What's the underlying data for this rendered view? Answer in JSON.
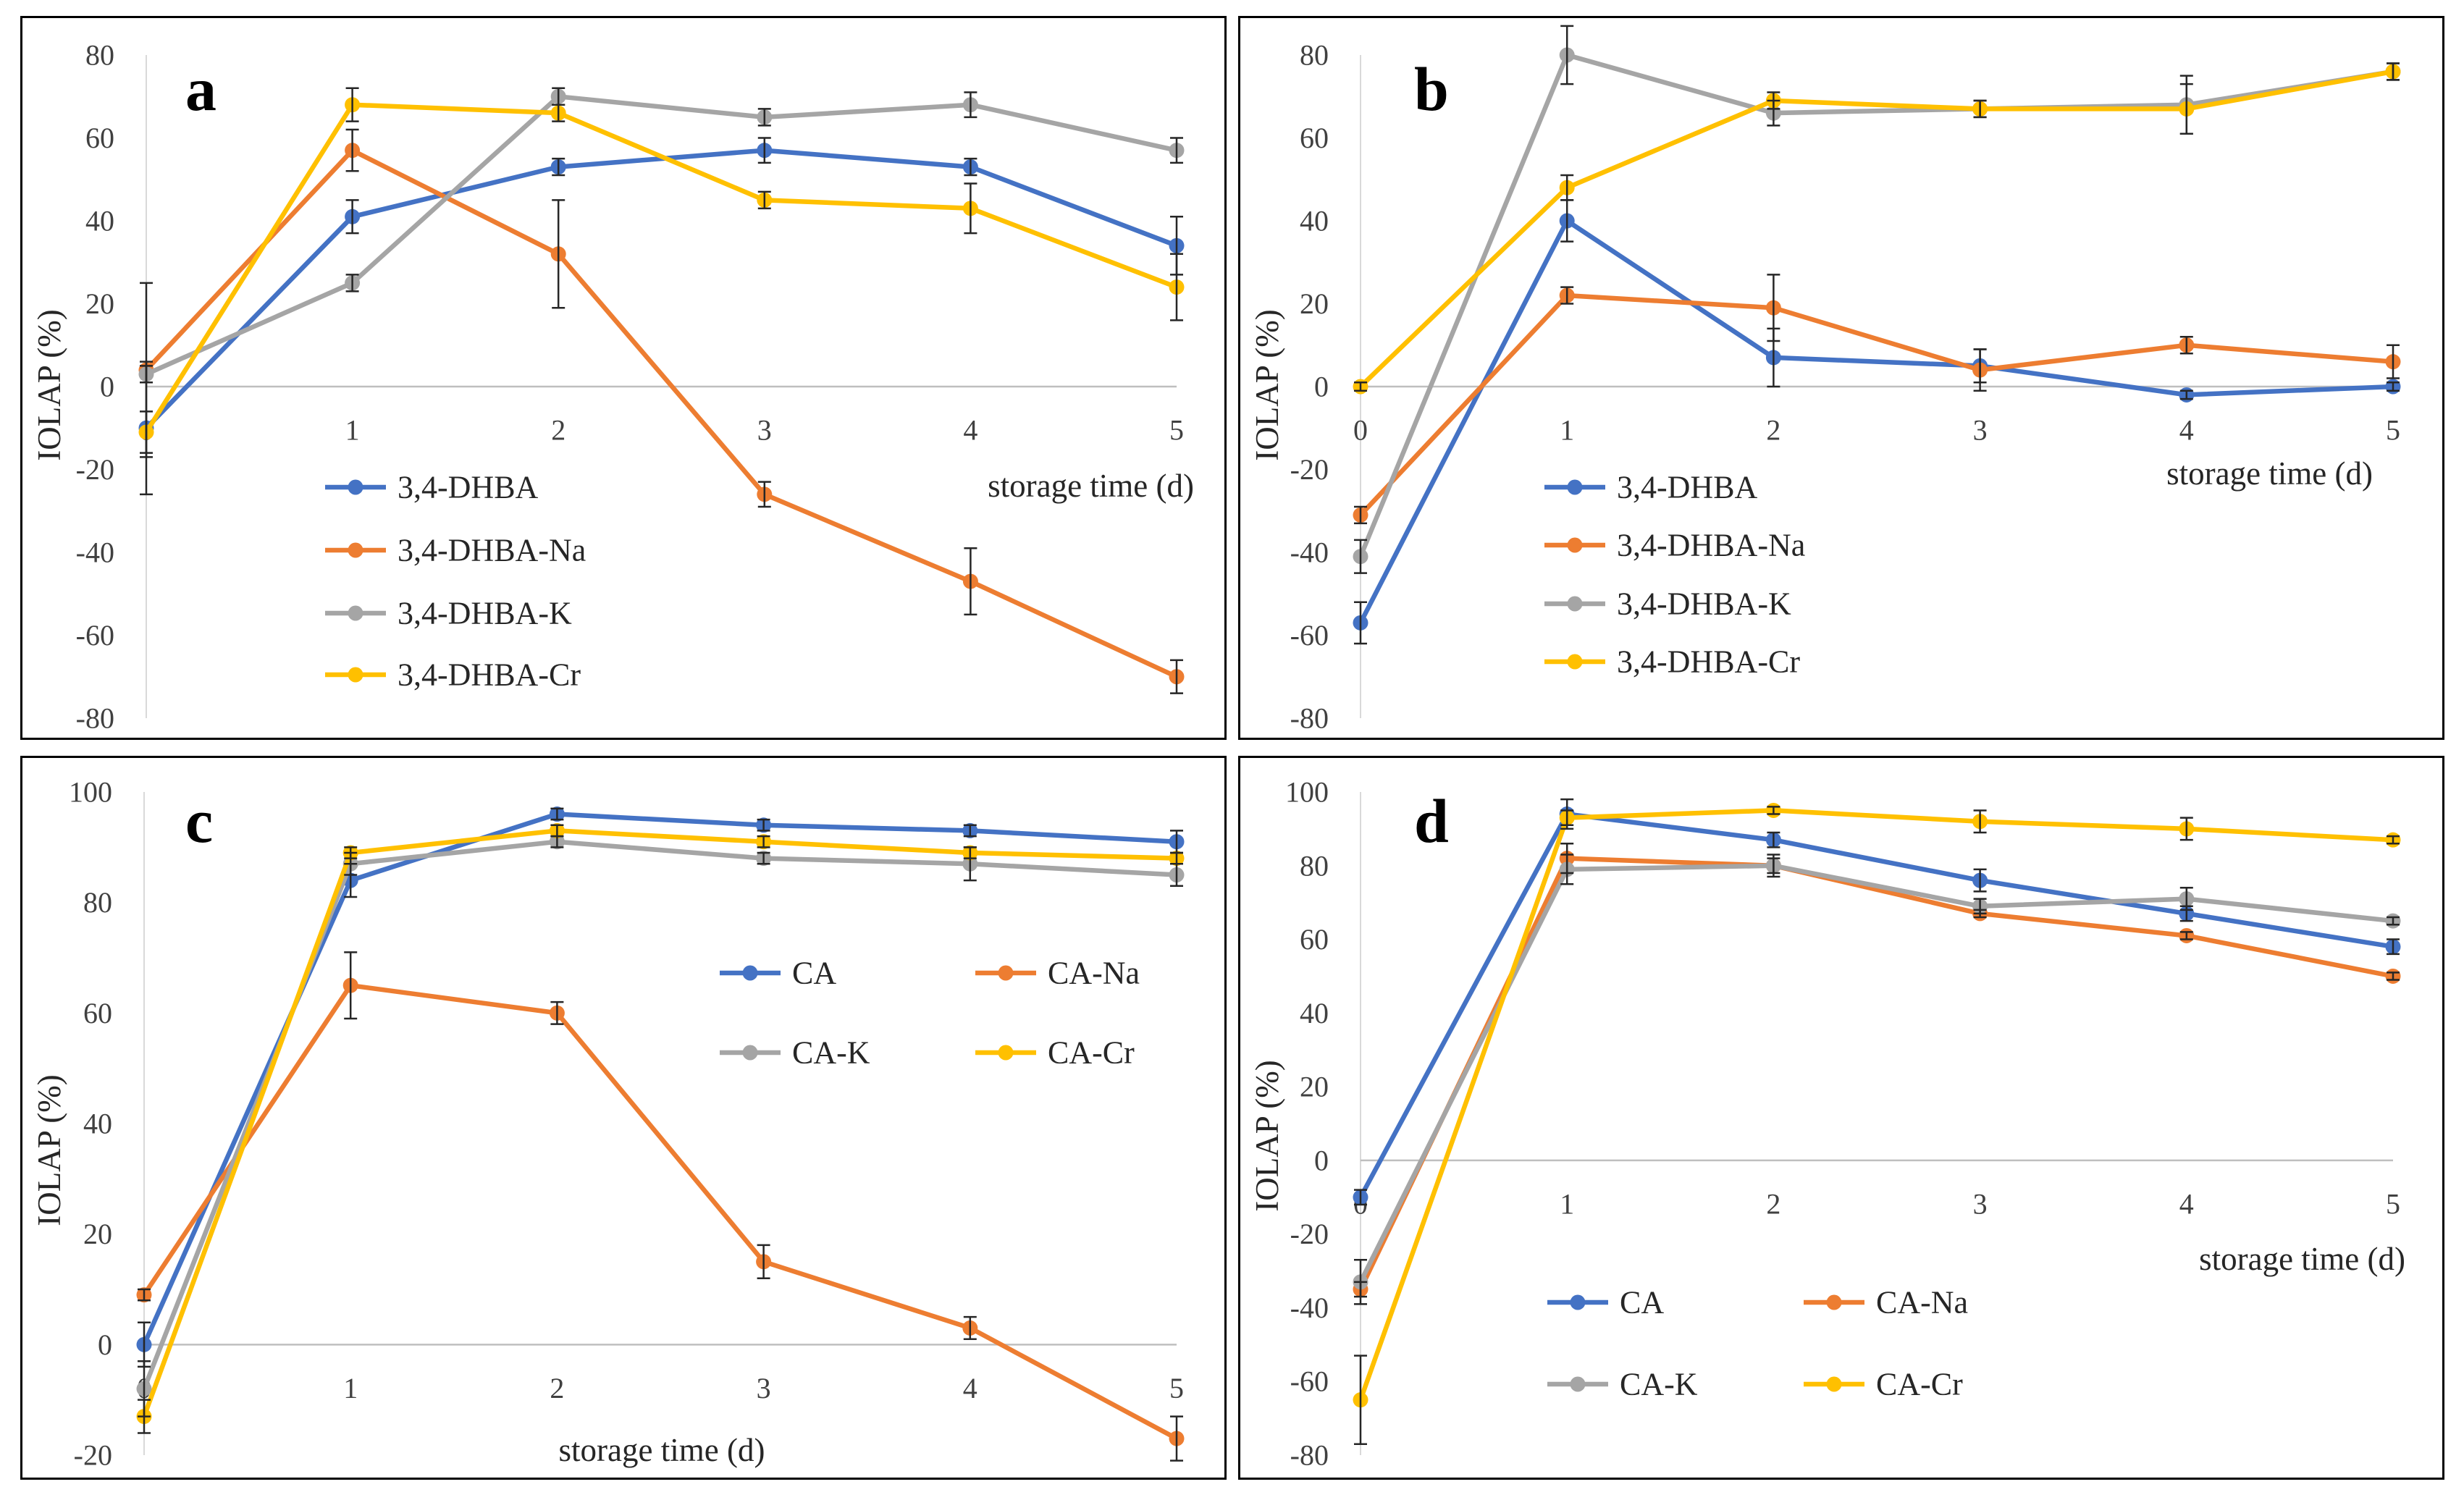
{
  "chart_data": [
    {
      "type": "line",
      "panel": "a",
      "xlabel": "storage time (d)",
      "ylabel": "IOLAP (%)",
      "x": [
        0,
        1,
        2,
        3,
        4,
        5
      ],
      "xlim": [
        0,
        5
      ],
      "ylim": [
        -80,
        80
      ],
      "yticks": [
        80,
        60,
        40,
        20,
        0,
        -20,
        -40,
        -60,
        -80
      ],
      "grid": false,
      "series": [
        {
          "name": "3,4-DHBA",
          "color": "#4472C4",
          "values": [
            -10,
            41,
            53,
            57,
            53,
            34
          ],
          "errors": [
            16,
            4,
            2,
            3,
            2,
            7
          ]
        },
        {
          "name": "3,4-DHBA-Na",
          "color": "#ED7D31",
          "values": [
            4,
            57,
            32,
            -26,
            -47,
            -70
          ],
          "errors": [
            21,
            5,
            13,
            3,
            8,
            4
          ]
        },
        {
          "name": "3,4-DHBA-K",
          "color": "#A5A5A5",
          "values": [
            3,
            25,
            70,
            65,
            68,
            57
          ],
          "errors": [
            2,
            2,
            2,
            2,
            3,
            3
          ]
        },
        {
          "name": "3,4-DHBA-Cr",
          "color": "#FFC000",
          "values": [
            -11,
            68,
            66,
            45,
            43,
            24
          ],
          "errors": [
            5,
            4,
            2,
            2,
            6,
            8
          ]
        }
      ]
    },
    {
      "type": "line",
      "panel": "b",
      "xlabel": "storage time (d)",
      "ylabel": "IOLAP (%)",
      "x": [
        0,
        1,
        2,
        3,
        4,
        5
      ],
      "xlim": [
        0,
        5
      ],
      "ylim": [
        -80,
        80
      ],
      "yticks": [
        80,
        60,
        40,
        20,
        0,
        -20,
        -40,
        -60,
        -80
      ],
      "grid": false,
      "series": [
        {
          "name": "3,4-DHBA",
          "color": "#4472C4",
          "values": [
            -57,
            40,
            7,
            5,
            -2,
            0
          ],
          "errors": [
            5,
            5,
            7,
            4,
            1,
            1
          ]
        },
        {
          "name": "3,4-DHBA-Na",
          "color": "#ED7D31",
          "values": [
            -31,
            22,
            19,
            4,
            10,
            6
          ],
          "errors": [
            2,
            2,
            8,
            5,
            2,
            4
          ]
        },
        {
          "name": "3,4-DHBA-K",
          "color": "#A5A5A5",
          "values": [
            -41,
            80,
            66,
            67,
            68,
            76
          ],
          "errors": [
            4,
            7,
            3,
            2,
            7,
            2
          ]
        },
        {
          "name": "3,4-DHBA-Cr",
          "color": "#FFC000",
          "values": [
            0,
            48,
            69,
            67,
            67,
            76
          ],
          "errors": [
            1,
            3,
            2,
            2,
            6,
            2
          ]
        }
      ]
    },
    {
      "type": "line",
      "panel": "c",
      "xlabel": "storage time (d)",
      "ylabel": "IOLAP (%)",
      "x": [
        0,
        1,
        2,
        3,
        4,
        5
      ],
      "xlim": [
        0,
        5
      ],
      "ylim": [
        -20,
        100
      ],
      "yticks": [
        100,
        80,
        60,
        40,
        20,
        0,
        -20
      ],
      "grid": false,
      "series": [
        {
          "name": "CA",
          "color": "#4472C4",
          "values": [
            0,
            84,
            96,
            94,
            93,
            91
          ],
          "errors": [
            4,
            3,
            1,
            1,
            1,
            2
          ]
        },
        {
          "name": "CA-Na",
          "color": "#ED7D31",
          "values": [
            9,
            65,
            60,
            15,
            3,
            -17
          ],
          "errors": [
            1,
            6,
            2,
            3,
            2,
            4
          ]
        },
        {
          "name": "CA-K",
          "color": "#A5A5A5",
          "values": [
            -8,
            87,
            91,
            88,
            87,
            85
          ],
          "errors": [
            5,
            2,
            1,
            1,
            3,
            2
          ]
        },
        {
          "name": "CA-Cr",
          "color": "#FFC000",
          "values": [
            -13,
            89,
            93,
            91,
            89,
            88
          ],
          "errors": [
            3,
            1,
            1,
            1,
            1,
            1
          ]
        }
      ]
    },
    {
      "type": "line",
      "panel": "d",
      "xlabel": "storage time (d)",
      "ylabel": "IOLAP (%)",
      "x": [
        0,
        1,
        2,
        3,
        4,
        5
      ],
      "xlim": [
        0,
        5
      ],
      "ylim": [
        -80,
        100
      ],
      "yticks": [
        100,
        80,
        60,
        40,
        20,
        0,
        -20,
        -40,
        -60,
        -80
      ],
      "grid": false,
      "series": [
        {
          "name": "CA",
          "color": "#4472C4",
          "values": [
            -10,
            94,
            87,
            76,
            67,
            58
          ],
          "errors": [
            2,
            4,
            2,
            3,
            2,
            2
          ]
        },
        {
          "name": "CA-Na",
          "color": "#ED7D31",
          "values": [
            -35,
            82,
            80,
            67,
            61,
            50
          ],
          "errors": [
            2,
            4,
            2,
            1,
            1,
            1
          ]
        },
        {
          "name": "CA-K",
          "color": "#A5A5A5",
          "values": [
            -33,
            79,
            80,
            69,
            71,
            65
          ],
          "errors": [
            6,
            4,
            3,
            2,
            3,
            1
          ]
        },
        {
          "name": "CA-Cr",
          "color": "#FFC000",
          "values": [
            -65,
            93,
            95,
            92,
            90,
            87
          ],
          "errors": [
            12,
            2,
            1,
            3,
            3,
            1
          ]
        }
      ]
    }
  ]
}
